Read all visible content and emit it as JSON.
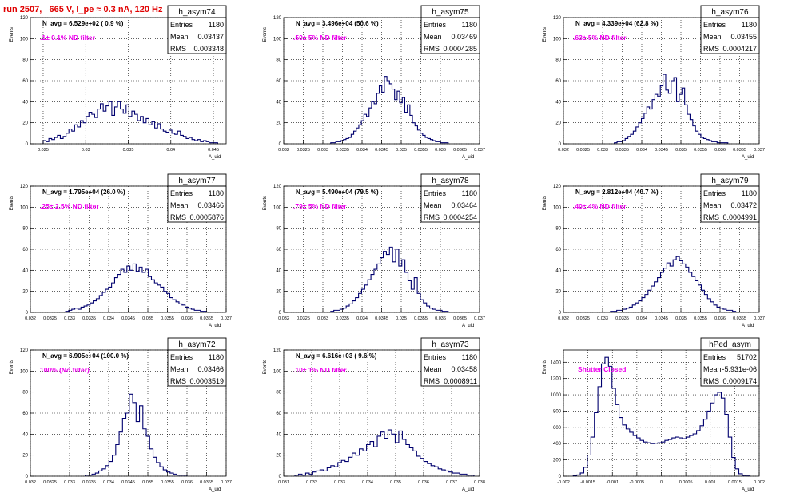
{
  "page": {
    "run_title": "run 2507,   665 V, I_pe ≈ 0.3 nA, 120 Hz"
  },
  "colors": {
    "hist_line": "#00006e",
    "annotation": "#ee00ee",
    "title_red": "#e00000",
    "grid": "#000000"
  },
  "chart_data": [
    {
      "type": "bar",
      "hist_name": "h_asym74",
      "stats": {
        "entries": "1180",
        "mean": "0.03437",
        "rms": "0.003348"
      },
      "navg_text": "N_avg = 6.529e+02 ( 0.9 %)",
      "filter_text": ".1± 0.1% ND filter",
      "ylabel": "Events",
      "xlabel": "A_uid",
      "xlim": [
        0.0235,
        0.0465
      ],
      "ylim": [
        0,
        120
      ],
      "xticks": [
        "0.025",
        "0.03",
        "0.035",
        "0.04",
        "0.045"
      ],
      "xtick_values": [
        0.025,
        0.03,
        0.035,
        0.04,
        0.045
      ],
      "yticks": [
        0,
        20,
        40,
        60,
        80,
        100,
        120
      ],
      "bin_range": [
        0.025,
        0.0455
      ],
      "values": [
        3,
        2,
        5,
        4,
        6,
        8,
        5,
        7,
        10,
        14,
        12,
        18,
        16,
        22,
        20,
        26,
        30,
        28,
        25,
        33,
        38,
        31,
        36,
        40,
        27,
        35,
        40,
        33,
        29,
        37,
        26,
        31,
        28,
        22,
        26,
        20,
        24,
        18,
        21,
        15,
        19,
        14,
        12,
        11,
        13,
        10,
        9,
        12,
        8,
        7,
        5,
        6,
        4,
        3,
        4,
        2,
        3,
        2,
        1,
        1,
        1
      ]
    },
    {
      "type": "bar",
      "hist_name": "h_asym75",
      "stats": {
        "entries": "1180",
        "mean": "0.03469",
        "rms": "0.0004285"
      },
      "navg_text": "N_avg = 3.496e+04 (50.6 %)",
      "filter_text": ".50± 5% ND filter",
      "ylabel": "Events",
      "xlabel": "A_uid",
      "xlim": [
        0.032,
        0.037
      ],
      "ylim": [
        0,
        120
      ],
      "xticks": [
        "0.032",
        "0.0325",
        "0.033",
        "0.0335",
        "0.034",
        "0.0345",
        "0.035",
        "0.0355",
        "0.036",
        "0.0365",
        "0.037"
      ],
      "xtick_values": [
        0.032,
        0.0325,
        0.033,
        0.0335,
        0.034,
        0.0345,
        0.035,
        0.0355,
        0.036,
        0.0365,
        0.037
      ],
      "yticks": [
        0,
        20,
        40,
        60,
        80,
        100,
        120
      ],
      "bin_range": [
        0.0332,
        0.0362
      ],
      "values": [
        1,
        1,
        2,
        2,
        3,
        4,
        5,
        6,
        9,
        12,
        15,
        18,
        22,
        28,
        26,
        34,
        40,
        38,
        48,
        55,
        49,
        64,
        60,
        57,
        52,
        42,
        50,
        39,
        44,
        30,
        37,
        27,
        20,
        17,
        13,
        10,
        8,
        6,
        5,
        4,
        3,
        2,
        2,
        1,
        1,
        1
      ]
    },
    {
      "type": "bar",
      "hist_name": "h_asym76",
      "stats": {
        "entries": "1180",
        "mean": "0.03455",
        "rms": "0.0004217"
      },
      "navg_text": "N_avg = 4.339e+04 (62.8 %)",
      "filter_text": ".63± 5% ND filter",
      "ylabel": "Events",
      "xlabel": "A_uid",
      "xlim": [
        0.032,
        0.037
      ],
      "ylim": [
        0,
        120
      ],
      "xticks": [
        "0.032",
        "0.0325",
        "0.033",
        "0.0335",
        "0.034",
        "0.0345",
        "0.035",
        "0.0355",
        "0.036",
        "0.0365",
        "0.037"
      ],
      "xtick_values": [
        0.032,
        0.0325,
        0.033,
        0.0335,
        0.034,
        0.0345,
        0.035,
        0.0355,
        0.036,
        0.0365,
        0.037
      ],
      "yticks": [
        0,
        20,
        40,
        60,
        80,
        100,
        120
      ],
      "bin_range": [
        0.0333,
        0.0362
      ],
      "values": [
        1,
        2,
        2,
        3,
        5,
        7,
        9,
        12,
        16,
        20,
        24,
        29,
        35,
        33,
        42,
        47,
        45,
        55,
        66,
        51,
        48,
        60,
        63,
        40,
        47,
        53,
        37,
        28,
        23,
        17,
        12,
        9,
        6,
        5,
        4,
        3,
        2,
        2,
        1,
        1,
        1,
        1
      ]
    },
    {
      "type": "bar",
      "hist_name": "h_asym77",
      "stats": {
        "entries": "1180",
        "mean": "0.03466",
        "rms": "0.0005876"
      },
      "navg_text": "N_avg = 1.795e+04 (26.0 %)",
      "filter_text": ".25± 2.5% ND filter",
      "ylabel": "Events",
      "xlabel": "A_uid",
      "xlim": [
        0.032,
        0.037
      ],
      "ylim": [
        0,
        120
      ],
      "xticks": [
        "0.032",
        "0.0325",
        "0.033",
        "0.0335",
        "0.034",
        "0.0345",
        "0.035",
        "0.0355",
        "0.036",
        "0.0365",
        "0.037"
      ],
      "xtick_values": [
        0.032,
        0.0325,
        0.033,
        0.0335,
        0.034,
        0.0345,
        0.035,
        0.0355,
        0.036,
        0.0365,
        0.037
      ],
      "yticks": [
        0,
        20,
        40,
        60,
        80,
        100,
        120
      ],
      "bin_range": [
        0.0329,
        0.0365
      ],
      "values": [
        1,
        2,
        3,
        4,
        3,
        5,
        6,
        7,
        9,
        11,
        13,
        16,
        19,
        22,
        24,
        28,
        33,
        36,
        41,
        38,
        44,
        40,
        46,
        39,
        43,
        38,
        41,
        34,
        31,
        28,
        26,
        24,
        20,
        18,
        14,
        12,
        10,
        8,
        7,
        5,
        4,
        3,
        2,
        2,
        1,
        1
      ]
    },
    {
      "type": "bar",
      "hist_name": "h_asym78",
      "stats": {
        "entries": "1180",
        "mean": "0.03464",
        "rms": "0.0004254"
      },
      "navg_text": "N_avg = 5.490e+04 (79.5 %)",
      "filter_text": ".79± 5% ND filter",
      "ylabel": "Events",
      "xlabel": "A_uid",
      "xlim": [
        0.032,
        0.037
      ],
      "ylim": [
        0,
        120
      ],
      "xticks": [
        "0.032",
        "0.0325",
        "0.033",
        "0.0335",
        "0.034",
        "0.0345",
        "0.035",
        "0.0355",
        "0.036",
        "0.0365",
        "0.037"
      ],
      "xtick_values": [
        0.032,
        0.0325,
        0.033,
        0.0335,
        0.034,
        0.0345,
        0.035,
        0.0355,
        0.036,
        0.0365,
        0.037
      ],
      "yticks": [
        0,
        20,
        40,
        60,
        80,
        100,
        120
      ],
      "bin_range": [
        0.0332,
        0.0362
      ],
      "values": [
        1,
        2,
        2,
        3,
        4,
        6,
        8,
        11,
        14,
        18,
        22,
        26,
        31,
        36,
        41,
        46,
        52,
        58,
        55,
        62,
        48,
        60,
        44,
        50,
        38,
        30,
        22,
        33,
        18,
        12,
        9,
        6,
        4,
        3,
        2,
        2,
        1,
        1
      ]
    },
    {
      "type": "bar",
      "hist_name": "h_asym79",
      "stats": {
        "entries": "1180",
        "mean": "0.03472",
        "rms": "0.0004991"
      },
      "navg_text": "N_avg = 2.812e+04 (40.7 %)",
      "filter_text": ".40± 4% ND filter",
      "ylabel": "Events",
      "xlabel": "A_uid",
      "xlim": [
        0.032,
        0.037
      ],
      "ylim": [
        0,
        120
      ],
      "xticks": [
        "0.032",
        "0.0325",
        "0.033",
        "0.0335",
        "0.034",
        "0.0345",
        "0.035",
        "0.0355",
        "0.036",
        "0.0365",
        "0.037"
      ],
      "xtick_values": [
        0.032,
        0.0325,
        0.033,
        0.0335,
        0.034,
        0.0345,
        0.035,
        0.0355,
        0.036,
        0.0365,
        0.037
      ],
      "yticks": [
        0,
        20,
        40,
        60,
        80,
        100,
        120
      ],
      "bin_range": [
        0.0332,
        0.0364
      ],
      "values": [
        1,
        1,
        2,
        2,
        3,
        4,
        5,
        7,
        9,
        11,
        14,
        17,
        21,
        25,
        29,
        33,
        38,
        42,
        47,
        44,
        50,
        53,
        49,
        46,
        43,
        38,
        34,
        30,
        26,
        21,
        17,
        13,
        10,
        7,
        5,
        4,
        3,
        2,
        2,
        1
      ]
    },
    {
      "type": "bar",
      "hist_name": "h_asym72",
      "stats": {
        "entries": "1180",
        "mean": "0.03466",
        "rms": "0.0003519"
      },
      "navg_text": "N_avg = 6.905e+04 (100.0 %)",
      "filter_text": "100% (No filter)",
      "ylabel": "Events",
      "xlabel": "A_uid",
      "xlim": [
        0.032,
        0.037
      ],
      "ylim": [
        0,
        120
      ],
      "xticks": [
        "0.032",
        "0.0325",
        "0.033",
        "0.0335",
        "0.034",
        "0.0345",
        "0.035",
        "0.0355",
        "0.036",
        "0.0365",
        "0.037"
      ],
      "xtick_values": [
        0.032,
        0.0325,
        0.033,
        0.0335,
        0.034,
        0.0345,
        0.035,
        0.0355,
        0.036,
        0.0365,
        0.037
      ],
      "yticks": [
        0,
        20,
        40,
        60,
        80,
        100,
        120
      ],
      "bin_range": [
        0.0334,
        0.036
      ],
      "values": [
        1,
        1,
        2,
        3,
        5,
        7,
        10,
        14,
        20,
        30,
        42,
        55,
        60,
        78,
        70,
        52,
        67,
        45,
        38,
        26,
        18,
        13,
        9,
        6,
        4,
        3,
        2,
        1,
        1,
        1
      ]
    },
    {
      "type": "bar",
      "hist_name": "h_asym73",
      "stats": {
        "entries": "1180",
        "mean": "0.03458",
        "rms": "0.0008911"
      },
      "navg_text": "N_avg = 6.616e+03 ( 9.6 %)",
      "filter_text": ".10± 1% ND filter",
      "ylabel": "Events",
      "xlabel": "A_uid",
      "xlim": [
        0.031,
        0.038
      ],
      "ylim": [
        0,
        120
      ],
      "xticks": [
        "0.031",
        "0.032",
        "0.033",
        "0.034",
        "0.035",
        "0.036",
        "0.037",
        "0.038"
      ],
      "xtick_values": [
        0.031,
        0.032,
        0.033,
        0.034,
        0.035,
        0.036,
        0.037,
        0.038
      ],
      "yticks": [
        0,
        20,
        40,
        60,
        80,
        100,
        120
      ],
      "bin_range": [
        0.0314,
        0.0378
      ],
      "values": [
        1,
        2,
        1,
        3,
        2,
        4,
        5,
        6,
        5,
        8,
        10,
        9,
        13,
        15,
        14,
        18,
        22,
        20,
        26,
        24,
        30,
        33,
        28,
        38,
        42,
        36,
        44,
        40,
        32,
        43,
        35,
        30,
        27,
        24,
        19,
        17,
        14,
        12,
        10,
        9,
        7,
        6,
        5,
        4,
        3,
        3,
        2,
        2,
        1,
        1
      ]
    },
    {
      "type": "bar",
      "hist_name": "hPed_asym",
      "stats": {
        "entries": "51702",
        "mean": "-5.931e-06",
        "rms": "0.0009174"
      },
      "filter_text": "Shutter Closed",
      "ylabel": "Events",
      "xlabel": "A_uid",
      "xlim": [
        -0.002,
        0.002
      ],
      "ylim": [
        0,
        1550
      ],
      "xticks": [
        "-0.002",
        "-0.0015",
        "-0.001",
        "-0.0005",
        "0",
        "0.0005",
        "0.001",
        "0.0015",
        "0.002"
      ],
      "xtick_values": [
        -0.002,
        -0.0015,
        -0.001,
        -0.0005,
        0,
        0.0005,
        0.001,
        0.0015,
        0.002
      ],
      "yticks": [
        0,
        200,
        400,
        600,
        800,
        1000,
        1200,
        1400
      ],
      "bin_range": [
        -0.0018,
        0.0018
      ],
      "values": [
        5,
        15,
        40,
        110,
        260,
        480,
        780,
        1100,
        1380,
        1460,
        1350,
        1080,
        880,
        720,
        630,
        580,
        540,
        500,
        470,
        440,
        420,
        410,
        400,
        405,
        410,
        420,
        440,
        450,
        470,
        480,
        470,
        460,
        480,
        500,
        520,
        560,
        620,
        700,
        800,
        900,
        1000,
        1030,
        960,
        760,
        480,
        230,
        90,
        30,
        10,
        3
      ]
    }
  ]
}
